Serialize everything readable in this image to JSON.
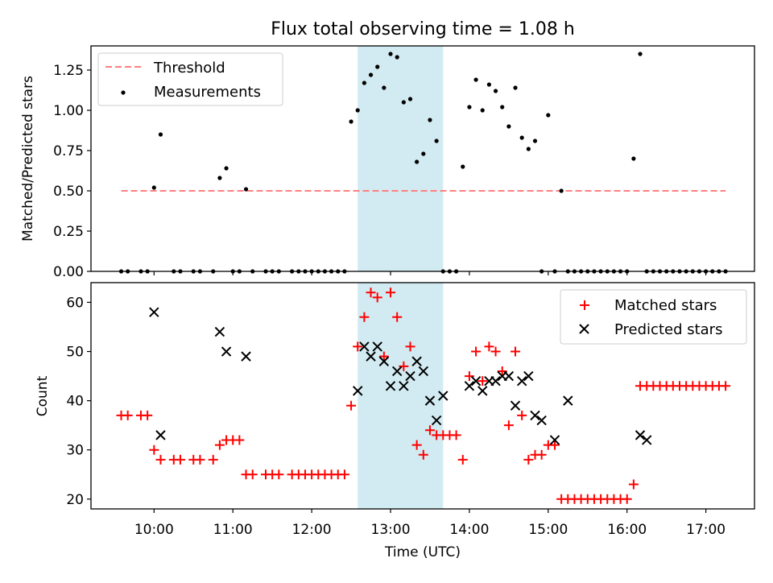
{
  "title": "Flux total observing time = 1.08 h",
  "colors": {
    "threshold": "#ff8080",
    "measurement": "#000000",
    "matched": "#ff0000",
    "predicted": "#000000",
    "span": "#add8e6"
  },
  "chart_data": [
    {
      "type": "scatter",
      "ylabel": "Matched/Predicted stars",
      "ylim": [
        0,
        1.4
      ],
      "yticks": [
        "0.00",
        "0.25",
        "0.50",
        "0.75",
        "1.00",
        "1.25"
      ],
      "ytick_values": [
        0,
        0.25,
        0.5,
        0.75,
        1.0,
        1.25
      ],
      "xlim": [
        "09:12",
        "17:37"
      ],
      "legend_position": "top-left",
      "legend": [
        "Threshold",
        "Measurements"
      ],
      "threshold": {
        "name": "Threshold",
        "value": 0.5,
        "x_range": [
          "09:35",
          "17:15"
        ]
      },
      "highlight_span": [
        "12:35",
        "13:40"
      ],
      "series": [
        {
          "name": "Measurements",
          "x": [
            "09:35",
            "09:40",
            "09:50",
            "09:55",
            "10:00",
            "10:05",
            "10:15",
            "10:20",
            "10:30",
            "10:35",
            "10:45",
            "10:50",
            "10:55",
            "11:00",
            "11:05",
            "11:10",
            "11:15",
            "11:25",
            "11:30",
            "11:35",
            "11:45",
            "11:50",
            "11:55",
            "12:00",
            "12:05",
            "12:10",
            "12:15",
            "12:20",
            "12:25",
            "12:30",
            "12:35",
            "12:40",
            "12:45",
            "12:50",
            "12:55",
            "13:00",
            "13:05",
            "13:10",
            "13:15",
            "13:20",
            "13:25",
            "13:30",
            "13:35",
            "13:40",
            "13:45",
            "13:50",
            "13:55",
            "14:00",
            "14:05",
            "14:10",
            "14:15",
            "14:20",
            "14:25",
            "14:30",
            "14:35",
            "14:40",
            "14:45",
            "14:50",
            "14:55",
            "15:00",
            "15:05",
            "15:10",
            "15:15",
            "15:20",
            "15:25",
            "15:30",
            "15:35",
            "15:40",
            "15:45",
            "15:50",
            "15:55",
            "16:00",
            "16:05",
            "16:10",
            "16:15",
            "16:20",
            "16:25",
            "16:30",
            "16:35",
            "16:40",
            "16:45",
            "16:50",
            "16:55",
            "17:00",
            "17:05",
            "17:10",
            "17:15"
          ],
          "y": [
            0,
            0,
            0,
            0,
            0.52,
            0.85,
            0,
            0,
            0,
            0,
            0,
            0.58,
            0.64,
            0,
            0,
            0.51,
            0,
            0,
            0,
            0,
            0,
            0,
            0,
            0,
            0,
            0,
            0,
            0,
            0,
            0.93,
            1.0,
            1.17,
            1.22,
            1.27,
            1.14,
            1.35,
            1.33,
            1.05,
            1.07,
            0.68,
            0.73,
            0.94,
            0.81,
            0,
            0,
            0,
            0.65,
            1.02,
            1.19,
            1.0,
            1.16,
            1.12,
            1.02,
            0.9,
            1.14,
            0.83,
            0.76,
            0.81,
            0,
            0.97,
            0,
            0.5,
            0,
            0,
            0,
            0,
            0,
            0,
            0,
            0,
            0,
            0,
            0.7,
            1.35,
            0,
            0,
            0,
            0,
            0,
            0,
            0,
            0,
            0,
            0,
            0,
            0,
            0
          ]
        }
      ]
    },
    {
      "type": "scatter",
      "title": "",
      "xlabel": "Time (UTC)",
      "ylabel": "Count",
      "ylim": [
        18,
        64
      ],
      "yticks": [
        "20",
        "30",
        "40",
        "50",
        "60"
      ],
      "ytick_values": [
        20,
        30,
        40,
        50,
        60
      ],
      "xlim": [
        "09:12",
        "17:37"
      ],
      "xticks": [
        "10:00",
        "11:00",
        "12:00",
        "13:00",
        "14:00",
        "15:00",
        "16:00",
        "17:00"
      ],
      "legend_position": "top-right",
      "legend": [
        "Matched stars",
        "Predicted stars"
      ],
      "highlight_span": [
        "12:35",
        "13:40"
      ],
      "series": [
        {
          "name": "Matched stars",
          "marker": "plus",
          "x": [
            "09:35",
            "09:40",
            "09:50",
            "09:55",
            "10:00",
            "10:05",
            "10:15",
            "10:20",
            "10:30",
            "10:35",
            "10:45",
            "10:50",
            "10:55",
            "11:00",
            "11:05",
            "11:10",
            "11:15",
            "11:25",
            "11:30",
            "11:35",
            "11:45",
            "11:50",
            "11:55",
            "12:00",
            "12:05",
            "12:10",
            "12:15",
            "12:20",
            "12:25",
            "12:30",
            "12:35",
            "12:40",
            "12:45",
            "12:50",
            "12:55",
            "13:00",
            "13:05",
            "13:10",
            "13:15",
            "13:20",
            "13:25",
            "13:30",
            "13:35",
            "13:40",
            "13:45",
            "13:50",
            "13:55",
            "14:00",
            "14:05",
            "14:10",
            "14:15",
            "14:20",
            "14:25",
            "14:30",
            "14:35",
            "14:40",
            "14:45",
            "14:50",
            "14:55",
            "15:00",
            "15:05",
            "15:10",
            "15:15",
            "15:20",
            "15:25",
            "15:30",
            "15:35",
            "15:40",
            "15:45",
            "15:50",
            "15:55",
            "16:00",
            "16:05",
            "16:10",
            "16:15",
            "16:20",
            "16:25",
            "16:30",
            "16:35",
            "16:40",
            "16:45",
            "16:50",
            "16:55",
            "17:00",
            "17:05",
            "17:10",
            "17:15"
          ],
          "y": [
            37,
            37,
            37,
            37,
            30,
            28,
            28,
            28,
            28,
            28,
            28,
            31,
            32,
            32,
            32,
            25,
            25,
            25,
            25,
            25,
            25,
            25,
            25,
            25,
            25,
            25,
            25,
            25,
            25,
            39,
            51,
            57,
            62,
            61,
            49,
            62,
            57,
            47,
            51,
            31,
            29,
            34,
            33,
            33,
            33,
            33,
            28,
            45,
            50,
            44,
            51,
            50,
            46,
            35,
            50,
            37,
            28,
            29,
            29,
            31,
            31,
            20,
            20,
            20,
            20,
            20,
            20,
            20,
            20,
            20,
            20,
            20,
            23,
            43,
            43,
            43,
            43,
            43,
            43,
            43,
            43,
            43,
            43,
            43,
            43,
            43,
            43
          ]
        },
        {
          "name": "Predicted stars",
          "marker": "x",
          "x": [
            "10:00",
            "10:05",
            "10:50",
            "10:55",
            "11:10",
            "12:35",
            "12:40",
            "12:45",
            "12:50",
            "12:55",
            "13:00",
            "13:05",
            "13:10",
            "13:15",
            "13:20",
            "13:25",
            "13:30",
            "13:35",
            "13:40",
            "14:00",
            "14:05",
            "14:10",
            "14:15",
            "14:20",
            "14:25",
            "14:30",
            "14:35",
            "14:40",
            "14:45",
            "14:50",
            "14:55",
            "15:05",
            "15:15",
            "16:10",
            "16:15"
          ],
          "y": [
            58,
            33,
            54,
            50,
            49,
            42,
            51,
            49,
            51,
            48,
            43,
            46,
            43,
            45,
            48,
            46,
            40,
            36,
            41,
            43,
            44,
            42,
            44,
            44,
            45,
            45,
            39,
            44,
            45,
            37,
            36,
            32,
            40,
            33,
            32
          ]
        }
      ]
    }
  ]
}
